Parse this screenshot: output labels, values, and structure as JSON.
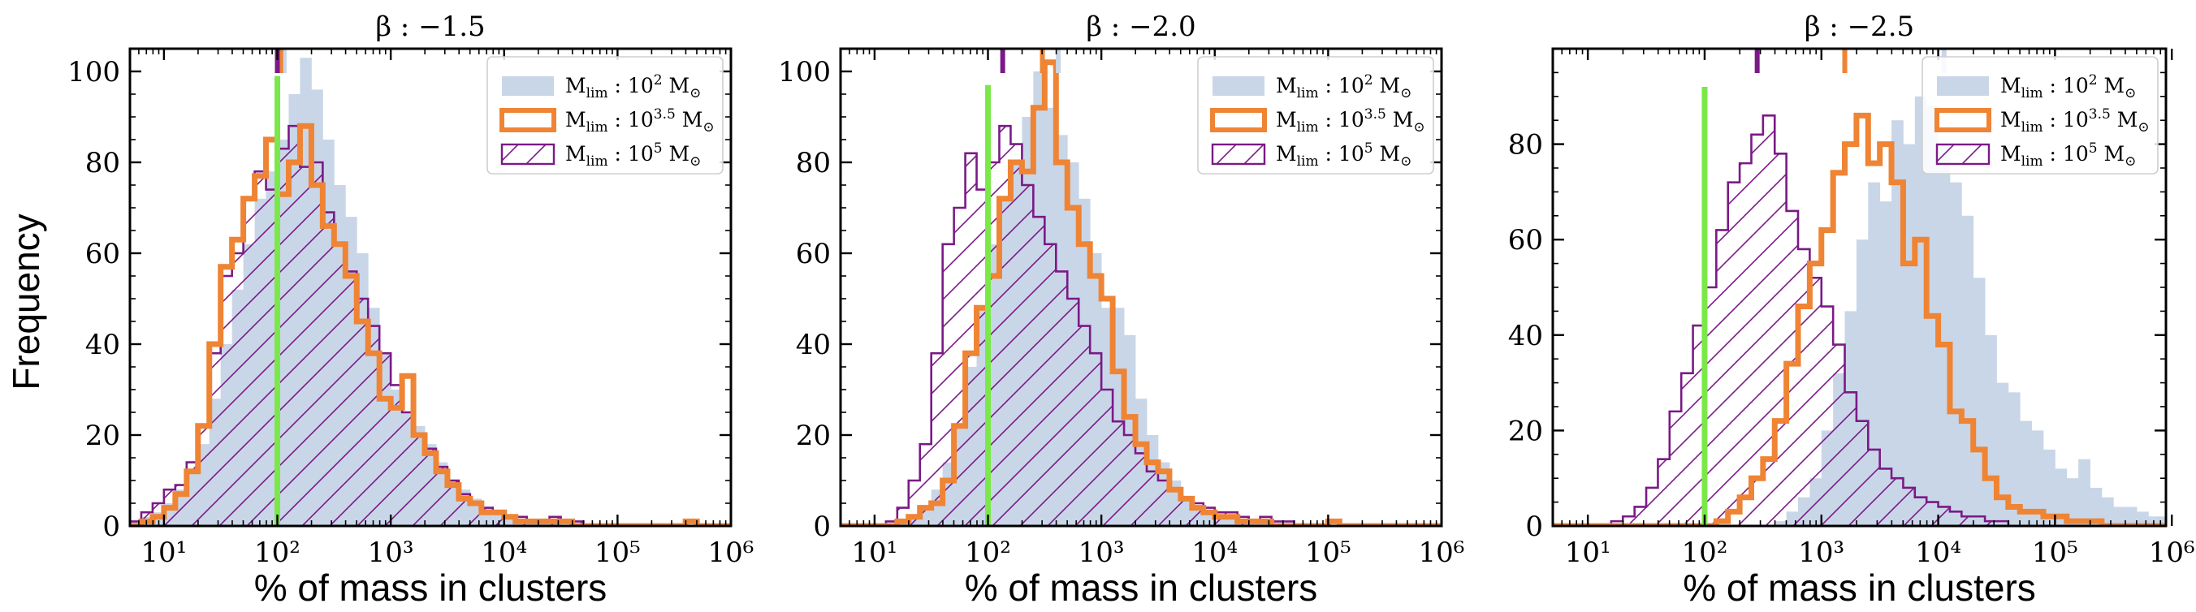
{
  "figure": {
    "ylabel": "Frequency",
    "xlabel": "% of mass in clusters"
  },
  "colors": {
    "light": "#c9d6e8",
    "orange": "#ee8434",
    "purple": "#7a1a86",
    "green": "#7be84a",
    "axis": "#000000"
  },
  "chart_data": [
    {
      "type": "bar",
      "title": "β : −1.5",
      "xlabel": "% of mass in clusters",
      "ylabel": "Frequency",
      "xscale": "log",
      "xlim_log10": [
        0.7,
        6.0
      ],
      "ylim": [
        0,
        105
      ],
      "yticks": [
        0,
        20,
        40,
        60,
        80,
        100
      ],
      "xticks_labels": [
        "10¹",
        "10²",
        "10³",
        "10⁴",
        "10⁵",
        "10⁶"
      ],
      "green_line_x_log10": 2.0,
      "green_line_top": 99,
      "marker_ticks": [
        {
          "series": "M_lim : 10^2 M_sun",
          "x_log10": 2.06
        },
        {
          "series": "M_lim : 10^3.5 M_sun",
          "x_log10": 2.03
        },
        {
          "series": "M_lim : 10^5 M_sun",
          "x_log10": 2.0
        }
      ],
      "legend": {
        "position": "upper-right",
        "entries": [
          {
            "series": "light",
            "prefix": "M",
            "sub": "lim",
            "colon": " : 10",
            "sup": "2",
            "suffix": " M",
            "sun": "⊙"
          },
          {
            "series": "orange",
            "prefix": "M",
            "sub": "lim",
            "colon": " : 10",
            "sup": "3.5",
            "suffix": " M",
            "sun": "⊙"
          },
          {
            "series": "purple",
            "prefix": "M",
            "sub": "lim",
            "colon": " : 10",
            "sup": "5",
            "suffix": " M",
            "sun": "⊙"
          }
        ]
      },
      "bin_log10_start": 0.7,
      "bin_log10_width": 0.1,
      "series": [
        {
          "name": "M_lim : 10^2 M_sun",
          "style": "filled",
          "values": [
            1,
            2,
            3,
            5,
            8,
            12,
            18,
            28,
            40,
            52,
            62,
            72,
            78,
            85,
            95,
            103,
            96,
            85,
            75,
            68,
            60,
            48,
            38,
            30,
            25,
            22,
            18,
            14,
            10,
            8,
            6,
            4,
            3,
            2,
            1,
            1,
            1,
            1,
            0,
            0,
            0,
            0,
            0,
            0,
            0,
            0,
            0,
            0,
            0,
            0,
            0,
            0,
            0
          ]
        },
        {
          "name": "M_lim : 10^3.5 M_sun",
          "style": "step",
          "values": [
            0,
            1,
            2,
            4,
            7,
            12,
            22,
            40,
            57,
            63,
            72,
            77,
            85,
            73,
            80,
            88,
            75,
            66,
            62,
            55,
            45,
            38,
            28,
            26,
            33,
            20,
            16,
            12,
            9,
            6,
            5,
            3,
            3,
            2,
            1,
            1,
            1,
            1,
            1,
            0,
            0,
            0,
            0,
            0,
            0,
            0,
            0,
            0,
            0,
            1,
            0,
            0,
            0
          ]
        },
        {
          "name": "M_lim : 10^5 M_sun",
          "style": "hatched",
          "values": [
            1,
            3,
            5,
            8,
            9,
            14,
            22,
            38,
            55,
            60,
            72,
            78,
            74,
            83,
            88,
            79,
            80,
            69,
            62,
            56,
            50,
            44,
            38,
            31,
            25,
            20,
            17,
            13,
            10,
            7,
            5,
            4,
            3,
            2,
            2,
            1,
            1,
            2,
            1,
            1,
            0,
            0,
            0,
            0,
            0,
            0,
            0,
            0,
            0,
            0,
            0,
            0,
            0
          ]
        }
      ]
    },
    {
      "type": "bar",
      "title": "β : −2.0",
      "xlabel": "% of mass in clusters",
      "ylabel": "",
      "xscale": "log",
      "xlim_log10": [
        0.7,
        6.0
      ],
      "ylim": [
        0,
        105
      ],
      "yticks": [
        0,
        20,
        40,
        60,
        80,
        100
      ],
      "xticks_labels": [
        "10¹",
        "10²",
        "10³",
        "10⁴",
        "10⁵",
        "10⁶"
      ],
      "green_line_x_log10": 2.0,
      "green_line_top": 97,
      "marker_ticks": [
        {
          "series": "M_lim : 10^2 M_sun",
          "x_log10": 2.62
        },
        {
          "series": "M_lim : 10^3.5 M_sun",
          "x_log10": 2.48
        },
        {
          "series": "M_lim : 10^5 M_sun",
          "x_log10": 2.13
        }
      ],
      "legend": {
        "position": "upper-right",
        "entries": [
          {
            "series": "light",
            "prefix": "M",
            "sub": "lim",
            "colon": " : 10",
            "sup": "2",
            "suffix": " M",
            "sun": "⊙"
          },
          {
            "series": "orange",
            "prefix": "M",
            "sub": "lim",
            "colon": " : 10",
            "sup": "3.5",
            "suffix": " M",
            "sun": "⊙"
          },
          {
            "series": "purple",
            "prefix": "M",
            "sub": "lim",
            "colon": " : 10",
            "sup": "5",
            "suffix": " M",
            "sun": "⊙"
          }
        ]
      },
      "bin_log10_start": 0.7,
      "bin_log10_width": 0.1,
      "series": [
        {
          "name": "M_lim : 10^2 M_sun",
          "style": "filled",
          "values": [
            0,
            0,
            0,
            0,
            0,
            1,
            2,
            4,
            8,
            14,
            22,
            35,
            48,
            62,
            72,
            80,
            90,
            100,
            92,
            86,
            80,
            72,
            60,
            48,
            48,
            42,
            28,
            20,
            14,
            10,
            6,
            4,
            3,
            2,
            2,
            1,
            1,
            1,
            0,
            0,
            0,
            0,
            0,
            0,
            0,
            0,
            0,
            0,
            0,
            0,
            0,
            0,
            0
          ]
        },
        {
          "name": "M_lim : 10^3.5 M_sun",
          "style": "step",
          "values": [
            0,
            0,
            0,
            0,
            0,
            1,
            2,
            4,
            5,
            10,
            22,
            38,
            48,
            55,
            72,
            80,
            78,
            92,
            102,
            80,
            70,
            62,
            55,
            50,
            34,
            24,
            18,
            14,
            12,
            8,
            6,
            4,
            3,
            2,
            2,
            1,
            1,
            1,
            0,
            0,
            0,
            0,
            0,
            1,
            0,
            0,
            0,
            0,
            0,
            0,
            0,
            0,
            0
          ]
        },
        {
          "name": "M_lim : 10^5 M_sun",
          "style": "hatched",
          "values": [
            0,
            0,
            0,
            0,
            1,
            4,
            10,
            18,
            38,
            62,
            70,
            82,
            74,
            80,
            88,
            84,
            75,
            68,
            62,
            56,
            50,
            44,
            38,
            30,
            23,
            20,
            16,
            12,
            10,
            8,
            6,
            5,
            4,
            3,
            3,
            2,
            1,
            2,
            1,
            1,
            0,
            0,
            0,
            0,
            0,
            0,
            0,
            0,
            0,
            0,
            0,
            0,
            0
          ]
        }
      ]
    },
    {
      "type": "bar",
      "title": "β : −2.5",
      "xlabel": "% of mass in clusters",
      "ylabel": "",
      "xscale": "log",
      "xlim_log10": [
        0.7,
        5.95
      ],
      "ylim": [
        0,
        100
      ],
      "yticks": [
        0,
        20,
        40,
        60,
        80
      ],
      "xticks_labels": [
        "10¹",
        "10²",
        "10³",
        "10⁴",
        "10⁵",
        "10⁶"
      ],
      "green_line_x_log10": 2.0,
      "green_line_top": 92,
      "marker_ticks": [
        {
          "series": "M_lim : 10^2 M_sun",
          "x_log10": 4.05
        },
        {
          "series": "M_lim : 10^3.5 M_sun",
          "x_log10": 3.2
        },
        {
          "series": "M_lim : 10^5 M_sun",
          "x_log10": 2.45
        }
      ],
      "legend": {
        "position": "upper-right",
        "entries": [
          {
            "series": "light",
            "prefix": "M",
            "sub": "lim",
            "colon": " : 10",
            "sup": "2",
            "suffix": " M",
            "sun": "⊙"
          },
          {
            "series": "orange",
            "prefix": "M",
            "sub": "lim",
            "colon": " : 10",
            "sup": "3.5",
            "suffix": " M",
            "sun": "⊙"
          },
          {
            "series": "purple",
            "prefix": "M",
            "sub": "lim",
            "colon": " : 10",
            "sup": "5",
            "suffix": " M",
            "sun": "⊙"
          }
        ]
      },
      "bin_log10_start": 0.7,
      "bin_log10_width": 0.1,
      "series": [
        {
          "name": "M_lim : 10^2 M_sun",
          "style": "filled",
          "values": [
            0,
            0,
            0,
            0,
            0,
            0,
            0,
            0,
            0,
            0,
            0,
            0,
            0,
            0,
            0,
            0,
            0,
            0,
            0,
            1,
            3,
            6,
            10,
            20,
            32,
            45,
            60,
            72,
            68,
            85,
            80,
            90,
            88,
            80,
            72,
            65,
            52,
            40,
            30,
            28,
            22,
            20,
            16,
            12,
            10,
            14,
            8,
            6,
            4,
            4,
            3,
            2,
            2
          ]
        },
        {
          "name": "M_lim : 10^3.5 M_sun",
          "style": "step",
          "values": [
            0,
            0,
            0,
            0,
            0,
            0,
            0,
            0,
            0,
            0,
            0,
            0,
            0,
            0,
            1,
            3,
            6,
            10,
            14,
            22,
            34,
            46,
            55,
            62,
            74,
            80,
            86,
            76,
            80,
            72,
            55,
            60,
            44,
            38,
            24,
            22,
            16,
            10,
            6,
            4,
            3,
            3,
            2,
            2,
            1,
            1,
            1,
            0,
            0,
            0,
            0,
            0,
            0
          ]
        },
        {
          "name": "M_lim : 10^5 M_sun",
          "style": "hatched",
          "values": [
            0,
            0,
            0,
            0,
            0,
            1,
            2,
            4,
            8,
            14,
            24,
            32,
            42,
            50,
            62,
            72,
            76,
            82,
            86,
            78,
            66,
            58,
            52,
            46,
            38,
            28,
            22,
            16,
            12,
            10,
            8,
            6,
            5,
            4,
            3,
            2,
            2,
            1,
            1,
            0,
            0,
            0,
            0,
            0,
            0,
            0,
            0,
            0,
            0,
            0,
            0,
            0,
            0
          ]
        }
      ]
    }
  ]
}
